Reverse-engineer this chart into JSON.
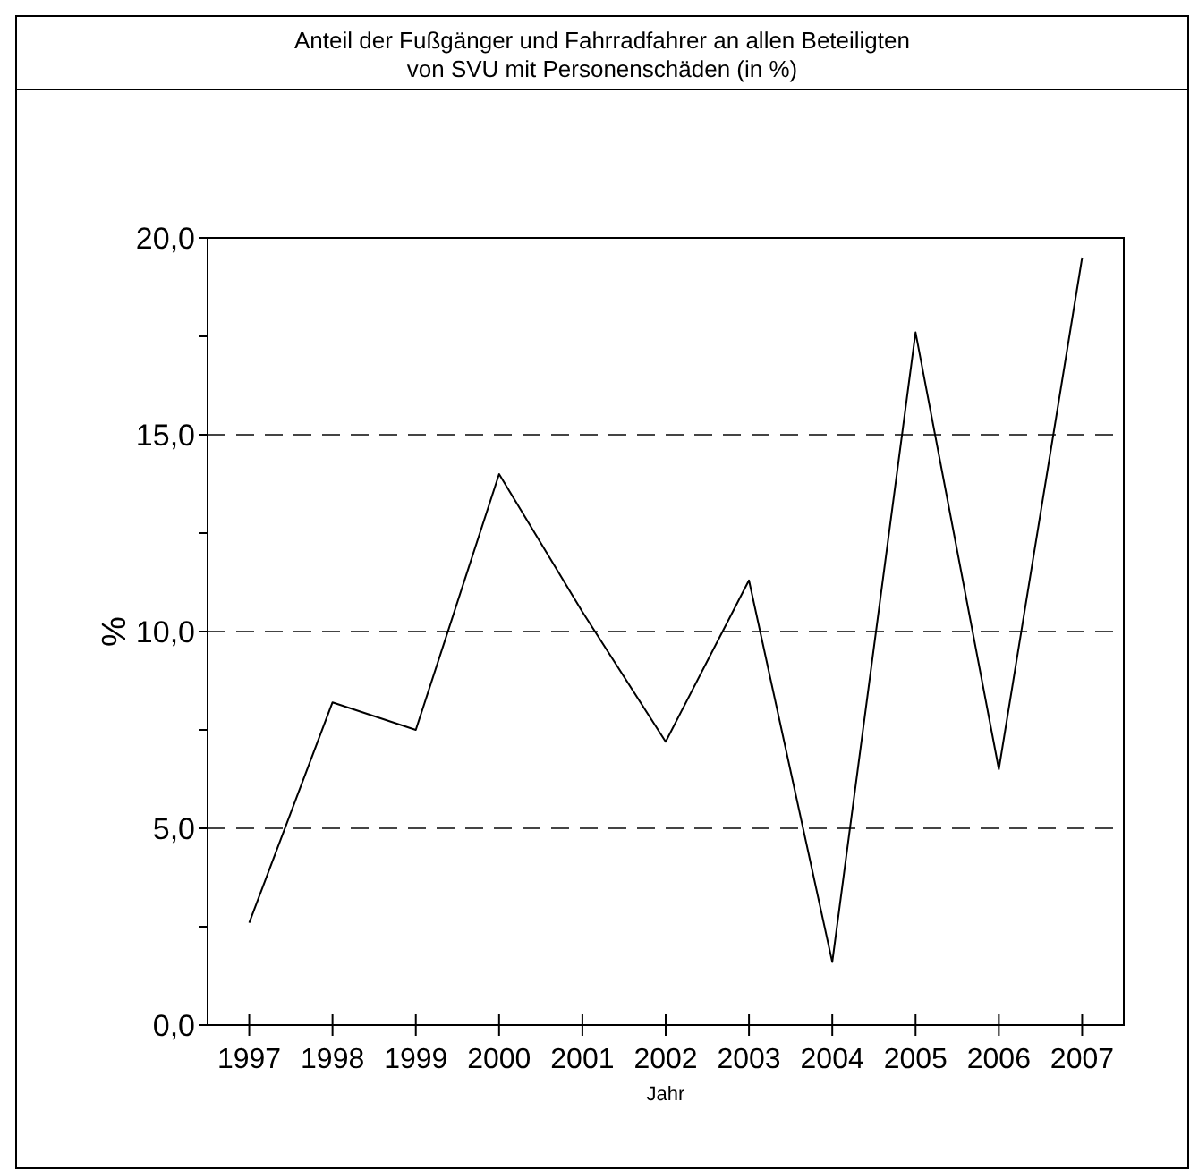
{
  "chart_data": {
    "type": "line",
    "title": "Anteil der Fußgänger und Fahrradfahrer an allen Beteiligten\nvon SVU mit Personenschäden (in %)",
    "xlabel": "Jahr",
    "ylabel": "%",
    "categories": [
      "1997",
      "1998",
      "1999",
      "2000",
      "2001",
      "2002",
      "2003",
      "2004",
      "2005",
      "2006",
      "2007"
    ],
    "series": [
      {
        "color": "#000000",
        "values": [
          2.6,
          8.2,
          7.5,
          14.0,
          10.5,
          7.2,
          11.3,
          1.6,
          17.6,
          6.5,
          19.5
        ]
      }
    ],
    "ylim": [
      0,
      20
    ],
    "yticks": [
      {
        "value": 0,
        "label": "0,0"
      },
      {
        "value": 2.5,
        "label": null
      },
      {
        "value": 5,
        "label": "5,0"
      },
      {
        "value": 7.5,
        "label": null
      },
      {
        "value": 10,
        "label": "10,0"
      },
      {
        "value": 12.5,
        "label": null
      },
      {
        "value": 15,
        "label": "15,0"
      },
      {
        "value": 17.5,
        "label": null
      },
      {
        "value": 20,
        "label": "20,0"
      }
    ],
    "grid": "y",
    "marker": "none",
    "line_style": "solid"
  }
}
